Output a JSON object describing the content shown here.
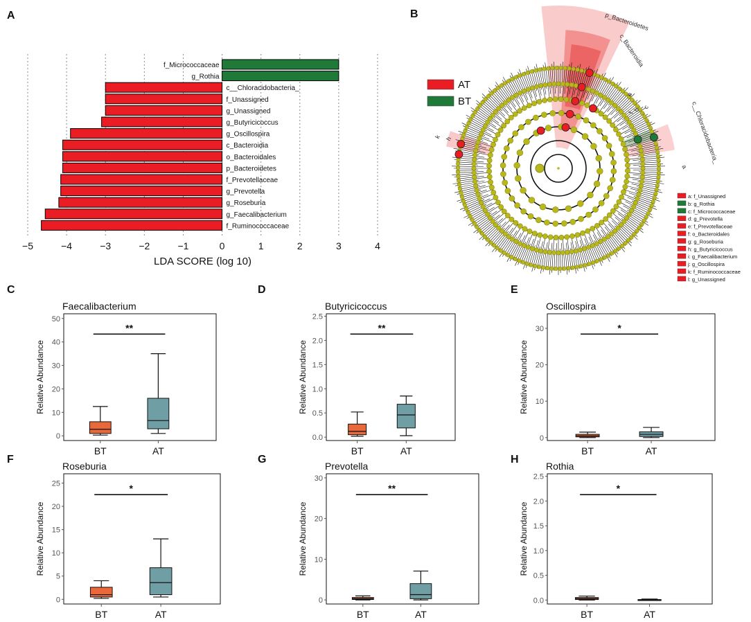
{
  "panel_letters": {
    "A": "A",
    "B": "B",
    "C": "C",
    "D": "D",
    "E": "E",
    "F": "F",
    "G": "G",
    "H": "H"
  },
  "chart_data": [
    {
      "type": "bar",
      "panel": "A",
      "orientation": "horizontal",
      "xlabel": "LDA SCORE (log 10)",
      "xlim": [
        -5,
        4
      ],
      "xticks": [
        -5,
        -4,
        -3,
        -2,
        -1,
        0,
        1,
        2,
        3,
        4
      ],
      "xtick_labels": [
        "−5",
        "−4",
        "−3",
        "−2",
        "−1",
        "0",
        "1",
        "2",
        "3",
        "4"
      ],
      "categories": [
        "f_Micrococcaceae",
        "g_Rothia",
        "c__Chloracidobacteria_",
        "f_Unassigned",
        "g_Unassigned",
        "g_Butyricicoccus",
        "g_Oscillospira",
        "c_Bacteroidia",
        "o_Bacteroidales",
        "p_Bacteroidetes",
        "f_Prevotellaceae",
        "g_Prevotella",
        "g_Roseburia",
        "g_Faecalibacterium",
        "f_Ruminococcaceae"
      ],
      "values": [
        3.0,
        3.0,
        -3.0,
        -3.0,
        -3.0,
        -3.1,
        -3.9,
        -4.1,
        -4.1,
        -4.1,
        -4.15,
        -4.15,
        -4.2,
        -4.55,
        -4.65
      ],
      "groups": [
        "BT",
        "BT",
        "AT",
        "AT",
        "AT",
        "AT",
        "AT",
        "AT",
        "AT",
        "AT",
        "AT",
        "AT",
        "AT",
        "AT",
        "AT"
      ],
      "colors": {
        "AT": "#ea1d25",
        "BT": "#1f7a3a"
      }
    },
    {
      "type": "cladogram",
      "panel": "B",
      "legend": [
        {
          "label": "AT",
          "color": "#ea1d25"
        },
        {
          "label": "BT",
          "color": "#1f7a3a"
        }
      ],
      "clade_labels": [
        "p_Bacteroidetes",
        "c_Bacteroidia",
        "c__Chloracidobacteria_",
        "k",
        "h",
        "f",
        "e",
        "a",
        "b",
        "c"
      ],
      "key": [
        {
          "label": "a: f_Unassigned",
          "group": "AT"
        },
        {
          "label": "b: g_Rothia",
          "group": "BT"
        },
        {
          "label": "c: f_Micrococcaceae",
          "group": "BT"
        },
        {
          "label": "d: g_Prevotella",
          "group": "AT"
        },
        {
          "label": "e: f_Prevotellaceae",
          "group": "AT"
        },
        {
          "label": "f: o_Bacteroidales",
          "group": "AT"
        },
        {
          "label": "g: g_Roseburia",
          "group": "AT"
        },
        {
          "label": "h: g_Butyricicoccus",
          "group": "AT"
        },
        {
          "label": "i: g_Faecalibacterium",
          "group": "AT"
        },
        {
          "label": "j: g_Oscillospira",
          "group": "AT"
        },
        {
          "label": "k: f_Ruminococcaceae",
          "group": "AT"
        },
        {
          "label": "l: g_Unassigned",
          "group": "AT"
        }
      ]
    },
    {
      "type": "box",
      "panel": "C",
      "title": "Faecalibacterium",
      "ylabel": "Relative Abundance",
      "ylim": [
        -2,
        52
      ],
      "yticks": [
        0,
        10,
        20,
        30,
        40,
        50
      ],
      "sig": "**",
      "groups": [
        {
          "name": "BT",
          "min": 0.3,
          "q1": 1,
          "median": 2.8,
          "q3": 6,
          "max": 12.5,
          "color": "#e8683a"
        },
        {
          "name": "AT",
          "min": 1,
          "q1": 3,
          "median": 6.5,
          "q3": 16,
          "max": 35,
          "color": "#6f9fa5"
        }
      ]
    },
    {
      "type": "box",
      "panel": "D",
      "title": "Butyricicoccus",
      "ylabel": "Relative Abundance",
      "ylim": [
        -0.07,
        2.55
      ],
      "yticks": [
        0.0,
        0.5,
        1.0,
        1.5,
        2.0,
        2.5
      ],
      "ytick_labels": [
        "0.0",
        "0.5",
        "1.0",
        "1.5",
        "2.0",
        "2.5"
      ],
      "sig": "**",
      "groups": [
        {
          "name": "BT",
          "min": 0.02,
          "q1": 0.05,
          "median": 0.12,
          "q3": 0.27,
          "max": 0.52,
          "color": "#e8683a"
        },
        {
          "name": "AT",
          "min": 0.03,
          "q1": 0.19,
          "median": 0.46,
          "q3": 0.68,
          "max": 0.85,
          "color": "#6f9fa5"
        }
      ]
    },
    {
      "type": "box",
      "panel": "E",
      "title": "Oscillospira",
      "ylabel": "Relative Abundance",
      "ylim": [
        -0.8,
        34
      ],
      "yticks": [
        0,
        10,
        20,
        30
      ],
      "sig": "*",
      "groups": [
        {
          "name": "BT",
          "min": 0,
          "q1": 0.2,
          "median": 0.5,
          "q3": 0.9,
          "max": 1.5,
          "color": "#e8683a"
        },
        {
          "name": "AT",
          "min": 0,
          "q1": 0.3,
          "median": 0.9,
          "q3": 1.6,
          "max": 2.8,
          "color": "#6f9fa5"
        }
      ]
    },
    {
      "type": "box",
      "panel": "F",
      "title": "Roseburia",
      "ylabel": "Relative Abundance",
      "ylim": [
        -1,
        27
      ],
      "yticks": [
        0,
        5,
        10,
        15,
        20,
        25
      ],
      "sig": "*",
      "groups": [
        {
          "name": "BT",
          "min": 0.2,
          "q1": 0.5,
          "median": 1.0,
          "q3": 2.6,
          "max": 4,
          "color": "#e8683a"
        },
        {
          "name": "AT",
          "min": 0.5,
          "q1": 1,
          "median": 3.6,
          "q3": 6.8,
          "max": 13,
          "color": "#6f9fa5"
        }
      ]
    },
    {
      "type": "box",
      "panel": "G",
      "title": "Prevotella",
      "ylabel": "Relative Abundance",
      "ylim": [
        -1,
        31
      ],
      "yticks": [
        0,
        10,
        20,
        30
      ],
      "sig": "**",
      "groups": [
        {
          "name": "BT",
          "min": 0,
          "q1": 0.1,
          "median": 0.3,
          "q3": 0.6,
          "max": 1,
          "color": "#e8683a"
        },
        {
          "name": "AT",
          "min": 0,
          "q1": 0.3,
          "median": 1.3,
          "q3": 4,
          "max": 7.1,
          "color": "#6f9fa5"
        }
      ]
    },
    {
      "type": "box",
      "panel": "H",
      "title": "Rothia",
      "ylabel": "Relative Abundance",
      "ylim": [
        -0.08,
        2.55
      ],
      "yticks": [
        0.0,
        0.5,
        1.0,
        1.5,
        2.0,
        2.5
      ],
      "ytick_labels": [
        "0.0",
        "0.5",
        "1.0",
        "1.5",
        "2.0",
        "2.5"
      ],
      "sig": "*",
      "groups": [
        {
          "name": "BT",
          "min": 0,
          "q1": 0.01,
          "median": 0.03,
          "q3": 0.05,
          "max": 0.08,
          "color": "#e8683a"
        },
        {
          "name": "AT",
          "min": 0,
          "q1": 0.002,
          "median": 0.005,
          "q3": 0.01,
          "max": 0.02,
          "color": "#6f9fa5"
        }
      ]
    }
  ]
}
